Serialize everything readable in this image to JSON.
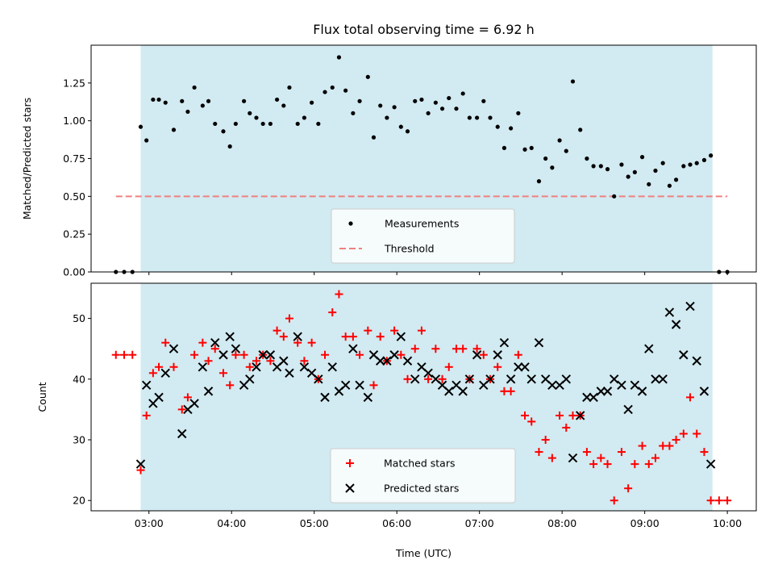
{
  "chart_data": [
    {
      "type": "scatter",
      "title": "Flux total observing time = 6.92 h",
      "xlabel": "",
      "ylabel": "Matched/Predicted stars",
      "ylim": [
        0,
        1.5
      ],
      "yticks": [
        0.0,
        0.25,
        0.5,
        0.75,
        1.0,
        1.25
      ],
      "ytick_labels": [
        "0.00",
        "0.25",
        "0.50",
        "0.75",
        "1.00",
        "1.25"
      ],
      "xlim_hours": [
        2.3,
        10.35
      ],
      "xticks_hours": [
        3,
        4,
        5,
        6,
        7,
        8,
        9,
        10
      ],
      "xtick_labels": [
        "03:00",
        "04:00",
        "05:00",
        "06:00",
        "07:00",
        "08:00",
        "09:00",
        "10:00"
      ],
      "observing_window_hours": [
        2.9,
        9.82
      ],
      "observing_window_color": "#add8e6",
      "threshold": {
        "name": "Threshold",
        "value": 0.5,
        "x_range_hours": [
          2.6,
          10.0
        ],
        "color": "#f08080"
      },
      "legend": {
        "placement": "lower center",
        "entries": [
          "Measurements",
          "Threshold"
        ]
      },
      "series": [
        {
          "name": "Measurements",
          "color": "#000000",
          "x_hours": [
            2.6,
            2.7,
            2.8,
            2.9,
            2.97,
            3.05,
            3.12,
            3.2,
            3.3,
            3.4,
            3.47,
            3.55,
            3.65,
            3.72,
            3.8,
            3.9,
            3.98,
            4.05,
            4.15,
            4.22,
            4.3,
            4.38,
            4.47,
            4.55,
            4.63,
            4.7,
            4.8,
            4.88,
            4.97,
            5.05,
            5.13,
            5.22,
            5.3,
            5.38,
            5.47,
            5.55,
            5.65,
            5.72,
            5.8,
            5.88,
            5.97,
            6.05,
            6.13,
            6.22,
            6.3,
            6.38,
            6.47,
            6.55,
            6.63,
            6.72,
            6.8,
            6.88,
            6.97,
            7.05,
            7.13,
            7.22,
            7.3,
            7.38,
            7.47,
            7.55,
            7.63,
            7.72,
            7.8,
            7.88,
            7.97,
            8.05,
            8.13,
            8.22,
            8.3,
            8.38,
            8.47,
            8.55,
            8.63,
            8.72,
            8.8,
            8.88,
            8.97,
            9.05,
            9.13,
            9.22,
            9.3,
            9.38,
            9.47,
            9.55,
            9.63,
            9.72,
            9.8,
            9.9,
            10.0
          ],
          "y": [
            0,
            0,
            0,
            0.96,
            0.87,
            1.14,
            1.14,
            1.12,
            0.94,
            1.13,
            1.06,
            1.22,
            1.1,
            1.13,
            0.98,
            0.93,
            0.83,
            0.98,
            1.13,
            1.05,
            1.02,
            0.98,
            0.98,
            1.14,
            1.1,
            1.22,
            0.98,
            1.02,
            1.12,
            0.98,
            1.19,
            1.22,
            1.42,
            1.2,
            1.05,
            1.13,
            1.29,
            0.89,
            1.1,
            1.02,
            1.09,
            0.96,
            0.93,
            1.13,
            1.14,
            1.05,
            1.12,
            1.08,
            1.15,
            1.08,
            1.18,
            1.02,
            1.02,
            1.13,
            1.02,
            0.96,
            0.82,
            0.95,
            1.05,
            0.81,
            0.82,
            0.6,
            0.75,
            0.69,
            0.87,
            0.8,
            1.26,
            0.94,
            0.75,
            0.7,
            0.7,
            0.68,
            0.5,
            0.71,
            0.63,
            0.66,
            0.76,
            0.58,
            0.67,
            0.72,
            0.57,
            0.61,
            0.7,
            0.71,
            0.72,
            0.74,
            0.77,
            0,
            0
          ]
        }
      ]
    },
    {
      "type": "scatter",
      "title": "",
      "xlabel": "Time (UTC)",
      "ylabel": "Count",
      "ylim": [
        18.3,
        55.8
      ],
      "yticks": [
        20,
        30,
        40,
        50
      ],
      "ytick_labels": [
        "20",
        "30",
        "40",
        "50"
      ],
      "xlim_hours": [
        2.3,
        10.35
      ],
      "xticks_hours": [
        3,
        4,
        5,
        6,
        7,
        8,
        9,
        10
      ],
      "xtick_labels": [
        "03:00",
        "04:00",
        "05:00",
        "06:00",
        "07:00",
        "08:00",
        "09:00",
        "10:00"
      ],
      "observing_window_hours": [
        2.9,
        9.82
      ],
      "observing_window_color": "#add8e6",
      "legend": {
        "placement": "lower center",
        "entries": [
          "Matched stars",
          "Predicted stars"
        ]
      },
      "series": [
        {
          "name": "Matched stars",
          "marker": "plus",
          "color": "#ff0000",
          "x_hours": [
            2.6,
            2.7,
            2.8,
            2.9,
            2.97,
            3.05,
            3.12,
            3.2,
            3.3,
            3.4,
            3.47,
            3.55,
            3.65,
            3.72,
            3.8,
            3.9,
            3.98,
            4.05,
            4.15,
            4.22,
            4.3,
            4.38,
            4.47,
            4.55,
            4.63,
            4.7,
            4.8,
            4.88,
            4.97,
            5.05,
            5.13,
            5.22,
            5.3,
            5.38,
            5.47,
            5.55,
            5.65,
            5.72,
            5.8,
            5.88,
            5.97,
            6.05,
            6.13,
            6.22,
            6.3,
            6.38,
            6.47,
            6.55,
            6.63,
            6.72,
            6.8,
            6.88,
            6.97,
            7.05,
            7.13,
            7.22,
            7.3,
            7.38,
            7.47,
            7.55,
            7.63,
            7.72,
            7.8,
            7.88,
            7.97,
            8.05,
            8.13,
            8.22,
            8.3,
            8.38,
            8.47,
            8.55,
            8.63,
            8.72,
            8.8,
            8.88,
            8.97,
            9.05,
            9.13,
            9.22,
            9.3,
            9.38,
            9.47,
            9.55,
            9.63,
            9.72,
            9.8,
            9.9,
            10.0
          ],
          "y": [
            44,
            44,
            44,
            25,
            34,
            41,
            42,
            46,
            42,
            35,
            37,
            44,
            46,
            43,
            45,
            41,
            39,
            44,
            44,
            42,
            43,
            44,
            43,
            48,
            47,
            50,
            46,
            43,
            46,
            40,
            44,
            51,
            54,
            47,
            47,
            44,
            48,
            39,
            47,
            43,
            48,
            44,
            40,
            45,
            48,
            40,
            45,
            40,
            42,
            45,
            45,
            40,
            45,
            44,
            40,
            42,
            38,
            38,
            44,
            34,
            33,
            28,
            30,
            27,
            34,
            32,
            34,
            34,
            28,
            26,
            27,
            26,
            20,
            28,
            22,
            26,
            29,
            26,
            27,
            29,
            29,
            30,
            31,
            37,
            31,
            28,
            20,
            20,
            20
          ]
        },
        {
          "name": "Predicted stars",
          "marker": "x",
          "color": "#000000",
          "x_hours": [
            2.9,
            2.97,
            3.05,
            3.12,
            3.2,
            3.3,
            3.4,
            3.47,
            3.55,
            3.65,
            3.72,
            3.8,
            3.9,
            3.98,
            4.05,
            4.15,
            4.22,
            4.3,
            4.38,
            4.47,
            4.55,
            4.63,
            4.7,
            4.8,
            4.88,
            4.97,
            5.05,
            5.13,
            5.22,
            5.3,
            5.38,
            5.47,
            5.55,
            5.65,
            5.72,
            5.8,
            5.88,
            5.97,
            6.05,
            6.13,
            6.22,
            6.3,
            6.38,
            6.47,
            6.55,
            6.63,
            6.72,
            6.8,
            6.88,
            6.97,
            7.05,
            7.13,
            7.22,
            7.3,
            7.38,
            7.47,
            7.55,
            7.63,
            7.72,
            7.8,
            7.88,
            7.97,
            8.05,
            8.13,
            8.22,
            8.3,
            8.38,
            8.47,
            8.55,
            8.63,
            8.72,
            8.8,
            8.88,
            8.97,
            9.05,
            9.13,
            9.22,
            9.3,
            9.38,
            9.47,
            9.55,
            9.63,
            9.72,
            9.8
          ],
          "y": [
            26,
            39,
            36,
            37,
            41,
            45,
            31,
            35,
            36,
            42,
            38,
            46,
            44,
            47,
            45,
            39,
            40,
            42,
            44,
            44,
            42,
            43,
            41,
            47,
            42,
            41,
            40,
            37,
            42,
            38,
            39,
            45,
            39,
            37,
            44,
            43,
            43,
            44,
            47,
            43,
            40,
            42,
            41,
            40,
            39,
            38,
            39,
            38,
            40,
            44,
            39,
            40,
            44,
            46,
            40,
            42,
            42,
            40,
            46,
            40,
            39,
            39,
            40,
            27,
            34,
            37,
            37,
            38,
            38,
            40,
            39,
            35,
            39,
            38,
            45,
            40,
            40,
            51,
            49,
            44,
            52,
            43,
            38,
            26
          ]
        }
      ]
    }
  ]
}
